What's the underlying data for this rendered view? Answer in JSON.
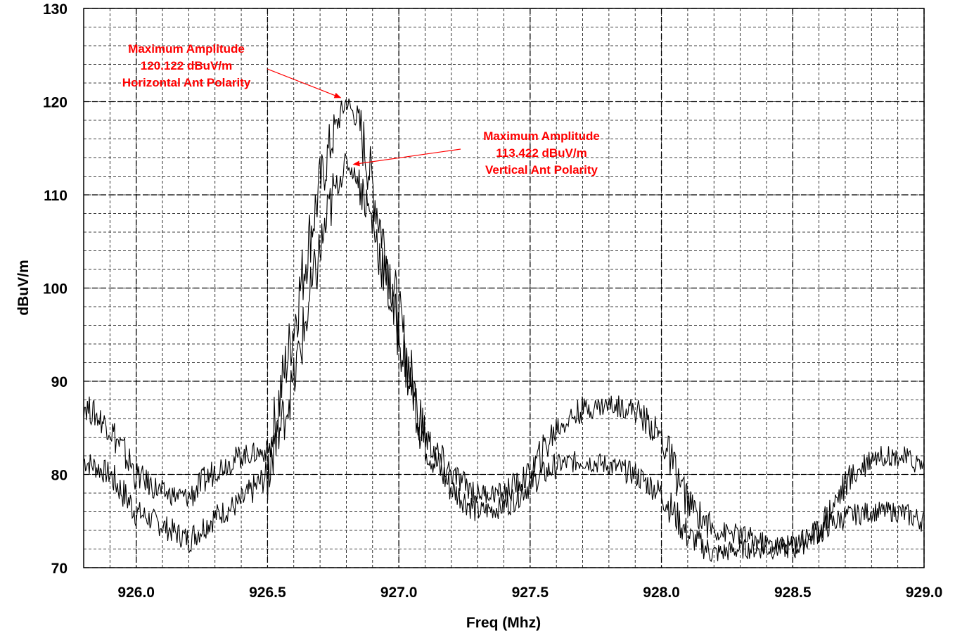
{
  "chart_data": {
    "type": "line",
    "title": "",
    "xlabel": "Freq (Mhz)",
    "ylabel": "dBuV/m",
    "xlim": [
      925.8,
      929.0
    ],
    "ylim": [
      70,
      130
    ],
    "x_major_step": 0.5,
    "x_minor_step": 0.1,
    "y_major_step": 10,
    "y_minor_step": 2,
    "grid": true,
    "legend": "none",
    "x_ticks": [
      "926.0",
      "926.5",
      "927.0",
      "927.5",
      "928.0",
      "928.5",
      "929.0"
    ],
    "y_ticks": [
      "70",
      "80",
      "90",
      "100",
      "110",
      "120",
      "130"
    ],
    "series": [
      {
        "x": [
          925.8,
          925.9,
          926.0,
          926.1,
          926.2,
          926.3,
          926.4,
          926.5,
          926.55,
          926.6,
          926.65,
          926.7,
          926.75,
          926.8,
          926.85,
          926.9,
          926.95,
          927.0,
          927.05,
          927.1,
          927.2,
          927.3,
          927.4,
          927.5,
          927.6,
          927.7,
          927.8,
          927.9,
          928.0,
          928.1,
          928.2,
          928.3,
          928.4,
          928.5,
          928.6,
          928.7,
          928.8,
          928.9,
          929.0
        ],
        "y": [
          81.5,
          80.0,
          76.0,
          74.5,
          73.0,
          75.5,
          77.0,
          80.0,
          89.0,
          96.0,
          104.0,
          111.0,
          116.5,
          120.1,
          117.5,
          111.0,
          104.0,
          97.0,
          90.0,
          83.0,
          78.5,
          76.0,
          76.5,
          79.0,
          81.0,
          81.5,
          81.0,
          80.0,
          78.0,
          73.5,
          71.5,
          72.0,
          72.0,
          72.0,
          74.0,
          75.5,
          76.0,
          76.0,
          75.0
        ],
        "color": "#000000"
      },
      {
        "x": [
          925.8,
          925.9,
          926.0,
          926.1,
          926.2,
          926.3,
          926.4,
          926.5,
          926.55,
          926.6,
          926.65,
          926.7,
          926.75,
          926.8,
          926.85,
          926.9,
          926.95,
          927.0,
          927.05,
          927.1,
          927.2,
          927.3,
          927.4,
          927.5,
          927.6,
          927.7,
          927.8,
          927.9,
          928.0,
          928.1,
          928.2,
          928.3,
          928.4,
          928.5,
          928.6,
          928.7,
          928.8,
          928.9,
          929.0
        ],
        "y": [
          87.5,
          85.0,
          80.0,
          78.0,
          77.5,
          80.5,
          82.0,
          82.5,
          85.0,
          90.0,
          97.0,
          104.0,
          110.0,
          113.4,
          111.5,
          107.0,
          101.0,
          95.0,
          89.0,
          84.0,
          80.0,
          78.0,
          78.0,
          80.0,
          85.0,
          87.0,
          87.5,
          87.0,
          84.0,
          77.0,
          74.0,
          73.5,
          72.5,
          72.5,
          74.0,
          79.0,
          82.0,
          82.0,
          81.0
        ],
        "color": "#000000"
      }
    ],
    "annotations": [
      {
        "lines": [
          "Maximum Amplitude",
          "120.122 dBuV/m",
          "Horizontal Ant Polarity"
        ],
        "point": [
          926.8,
          120.122
        ],
        "color": "#ff0000"
      },
      {
        "lines": [
          "Maximum Amplitude",
          "113.422 dBuV/m",
          "Vertical Ant Polarity"
        ],
        "point": [
          926.8,
          113.422
        ],
        "color": "#ff0000"
      }
    ]
  }
}
